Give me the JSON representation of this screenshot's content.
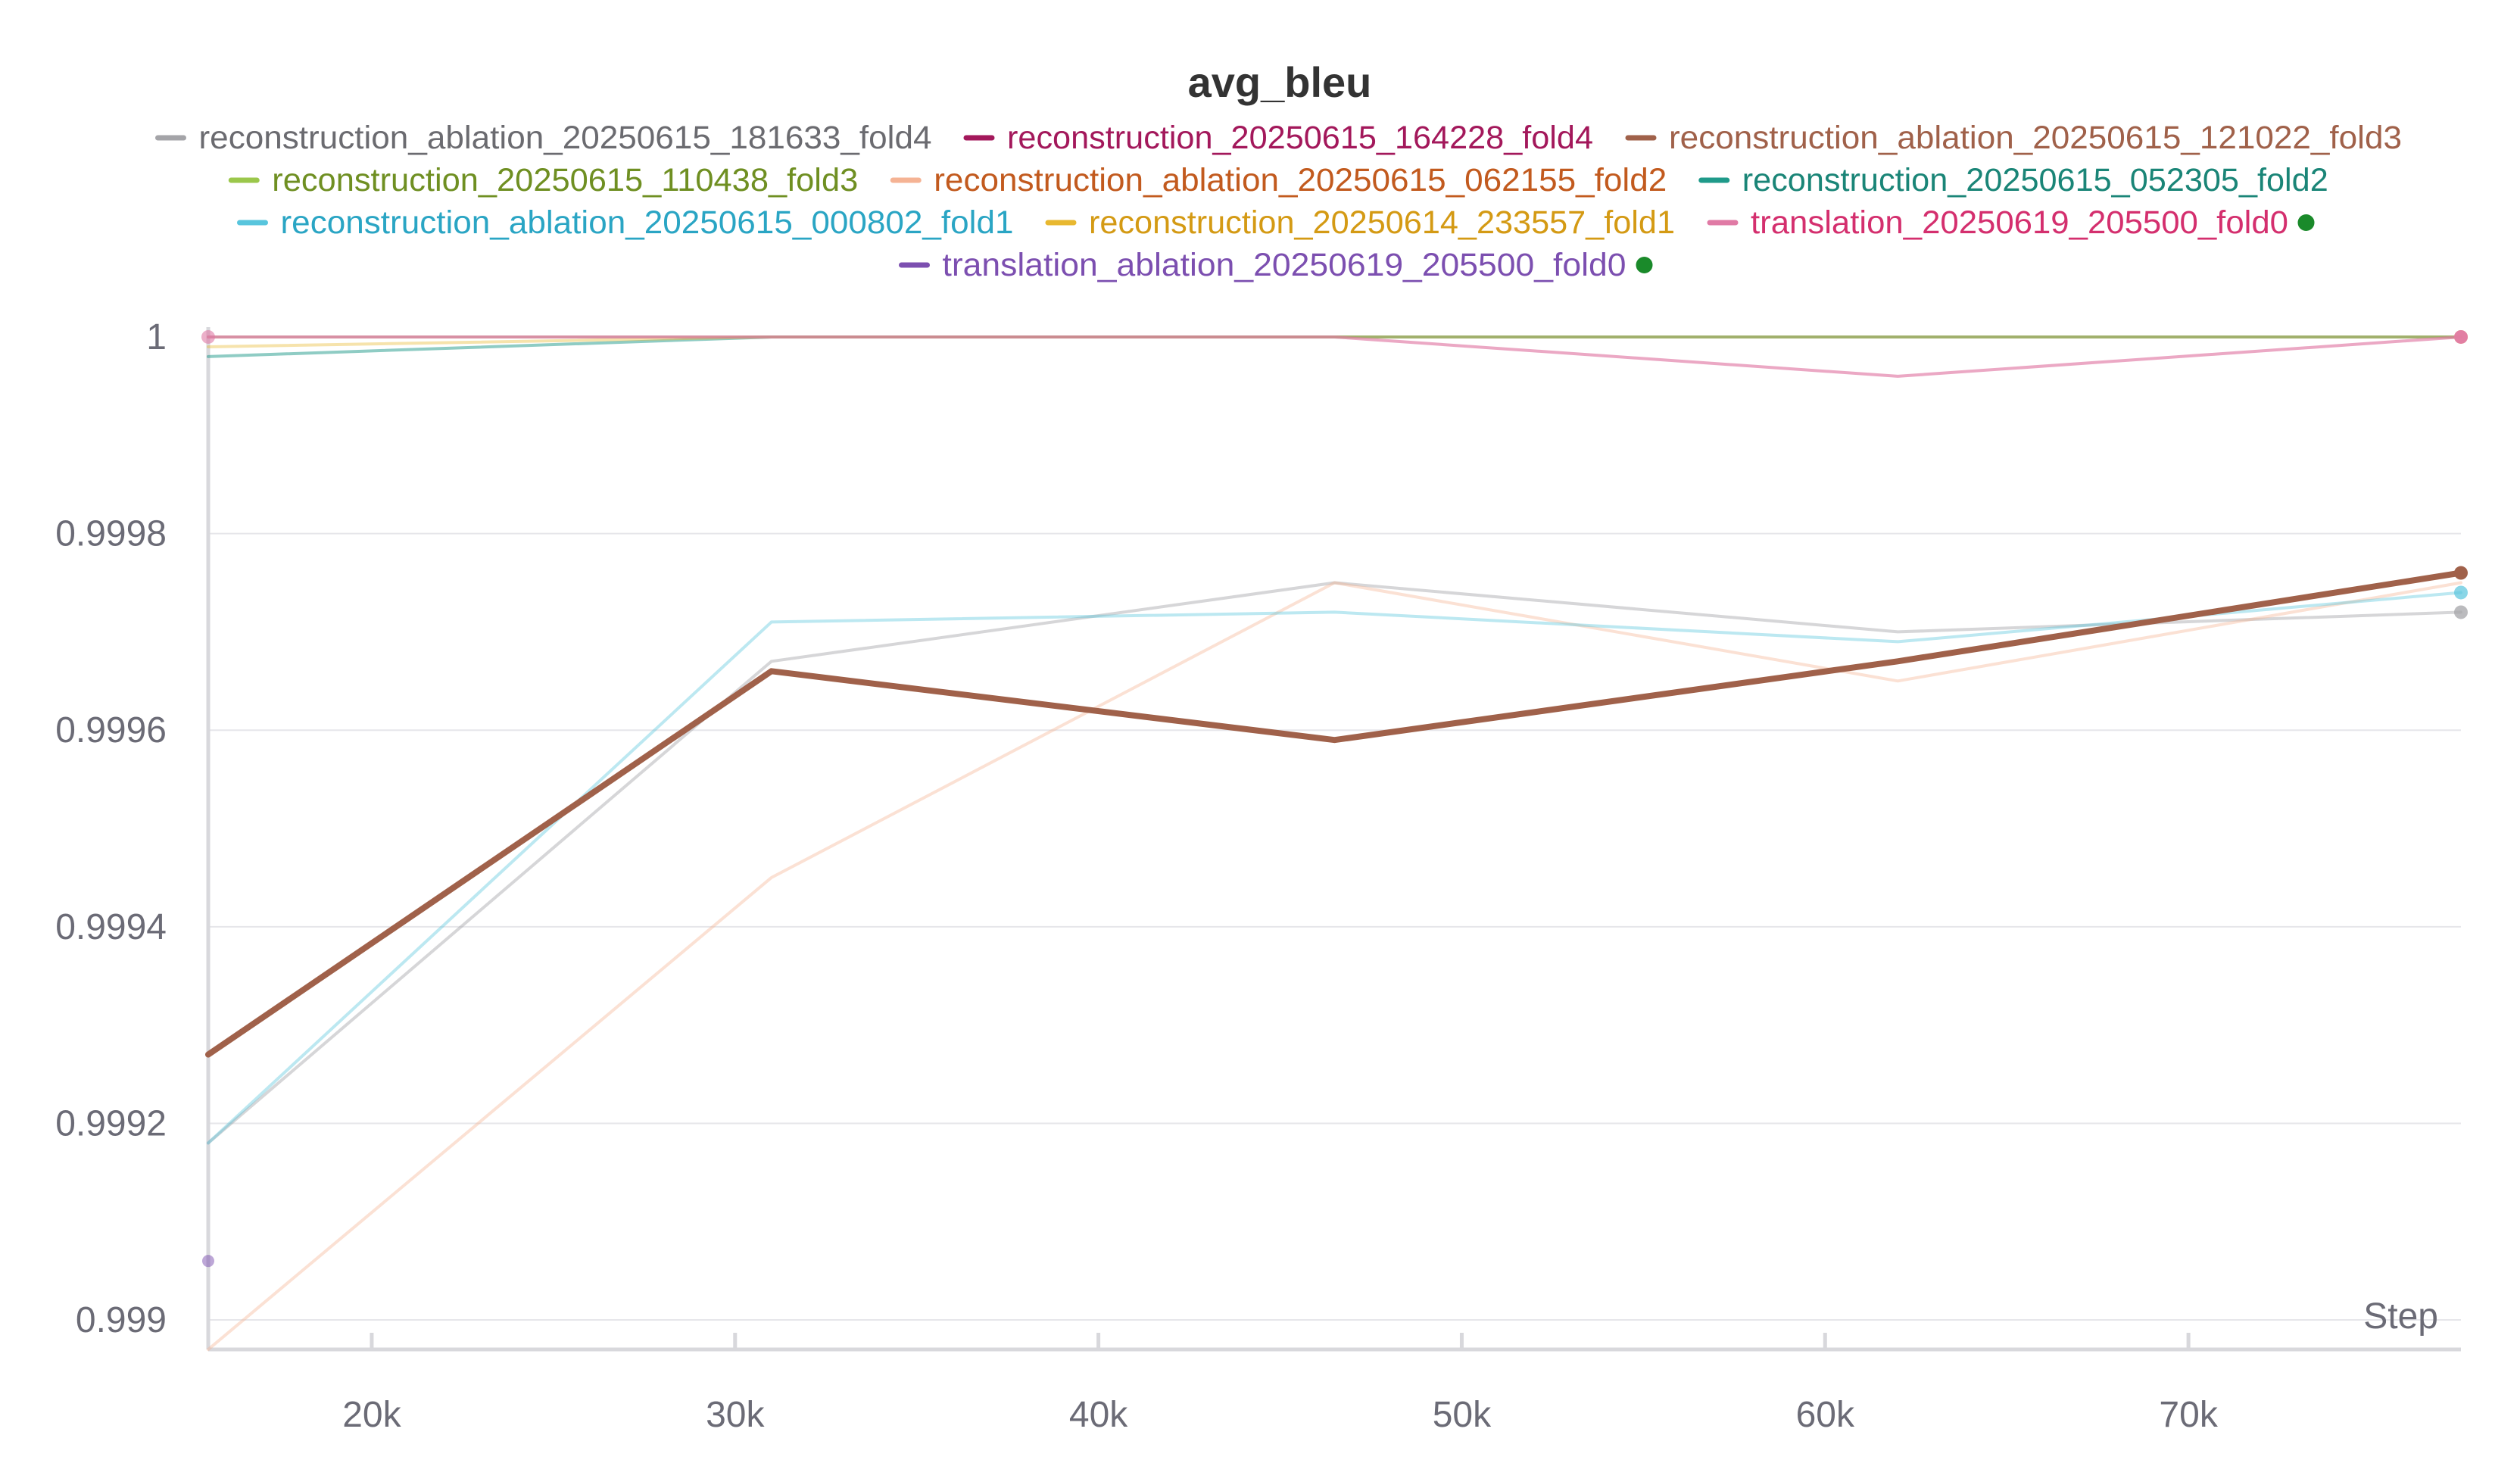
{
  "chart_data": {
    "type": "line",
    "title": "avg_bleu",
    "xlabel": "Step",
    "ylabel": "",
    "xlim": [
      15500,
      77500
    ],
    "ylim": [
      0.99897,
      1.00001
    ],
    "x_ticks": [
      {
        "value": 20000,
        "label": "20k"
      },
      {
        "value": 30000,
        "label": "30k"
      },
      {
        "value": 40000,
        "label": "40k"
      },
      {
        "value": 50000,
        "label": "50k"
      },
      {
        "value": 60000,
        "label": "60k"
      },
      {
        "value": 70000,
        "label": "70k"
      }
    ],
    "y_ticks": [
      {
        "value": 1.0,
        "label": "1"
      },
      {
        "value": 0.9998,
        "label": "0.9998"
      },
      {
        "value": 0.9996,
        "label": "0.9996"
      },
      {
        "value": 0.9994,
        "label": "0.9994"
      },
      {
        "value": 0.9992,
        "label": "0.9992"
      },
      {
        "value": 0.999,
        "label": "0.999"
      }
    ],
    "grid": true,
    "legend_position": "top",
    "series": [
      {
        "name": "reconstruction_ablation_20250615_181633_fold4",
        "color": "#a4a4a8",
        "text_color": "#6b6b70",
        "opacity": 0.45,
        "stroke": 4,
        "end_marker": true,
        "x": [
          15500,
          31000,
          46500,
          62000,
          77500
        ],
        "y": [
          0.99918,
          0.99967,
          0.99975,
          0.9997,
          0.99972
        ]
      },
      {
        "name": "reconstruction_20250615_164228_fold4",
        "color": "#a3185b",
        "text_color": "#a3185b",
        "opacity": 0.25,
        "stroke": 4,
        "end_marker": false,
        "x": [
          15500,
          31000,
          46500,
          62000,
          77500
        ],
        "y": [
          1.0,
          1.0,
          1.0,
          1.0,
          1.0
        ]
      },
      {
        "name": "reconstruction_ablation_20250615_121022_fold3",
        "color": "#a0614a",
        "text_color": "#a0614a",
        "opacity": 1.0,
        "stroke": 8,
        "end_marker": true,
        "x": [
          15500,
          31000,
          46500,
          62000,
          77500
        ],
        "y": [
          0.99927,
          0.99966,
          0.99959,
          0.99967,
          0.99976
        ]
      },
      {
        "name": "reconstruction_20250615_110438_fold3",
        "color": "#9bc74b",
        "text_color": "#6f8f22",
        "opacity": 0.3,
        "stroke": 4,
        "end_marker": false,
        "x": [
          15500,
          31000,
          46500,
          62000,
          77500
        ],
        "y": [
          1.0,
          1.0,
          1.0,
          1.0,
          1.0
        ]
      },
      {
        "name": "reconstruction_ablation_20250615_062155_fold2",
        "color": "#f5b394",
        "text_color": "#c25a1e",
        "opacity": 0.4,
        "stroke": 4,
        "end_marker": false,
        "x": [
          15500,
          31000,
          46500,
          62000,
          77500
        ],
        "y": [
          0.99897,
          0.99945,
          0.99975,
          0.99965,
          0.99975
        ]
      },
      {
        "name": "reconstruction_20250615_052305_fold2",
        "color": "#1f9a8a",
        "text_color": "#1a8577",
        "opacity": 0.5,
        "stroke": 4,
        "end_marker": false,
        "x": [
          15500,
          31000,
          46500,
          62000,
          77500
        ],
        "y": [
          0.99998,
          1.0,
          1.0,
          1.0,
          1.0
        ]
      },
      {
        "name": "reconstruction_ablation_20250615_000802_fold1",
        "color": "#58c5dd",
        "text_color": "#2aa5c4",
        "opacity": 0.4,
        "stroke": 4,
        "end_marker": true,
        "x": [
          15500,
          31000,
          46500,
          62000,
          77500
        ],
        "y": [
          0.99918,
          0.99971,
          0.99972,
          0.99969,
          0.99974
        ]
      },
      {
        "name": "reconstruction_20250614_233557_fold1",
        "color": "#e8b830",
        "text_color": "#d49a14",
        "opacity": 0.4,
        "stroke": 4,
        "end_marker": true,
        "x": [
          15500,
          31000,
          46500,
          62000,
          77500
        ],
        "y": [
          0.99999,
          1.0,
          1.0,
          1.0,
          1.0
        ]
      },
      {
        "name": "translation_20250619_205500_fold0",
        "color": "#e07aa5",
        "text_color": "#d42f6e",
        "opacity": 0.65,
        "stroke": 4,
        "end_marker": true,
        "active": true,
        "x": [
          15500,
          31000,
          46500,
          62000,
          77500
        ],
        "y": [
          1.0,
          1.0,
          1.0,
          0.99996,
          1.0
        ]
      },
      {
        "name": "translation_ablation_20250619_205500_fold0",
        "color": "#7c4fb0",
        "text_color": "#7c4fb0",
        "opacity": 0.5,
        "stroke": 4,
        "end_marker": false,
        "active": true,
        "x": [
          15500
        ],
        "y": [
          0.99906
        ]
      }
    ]
  }
}
